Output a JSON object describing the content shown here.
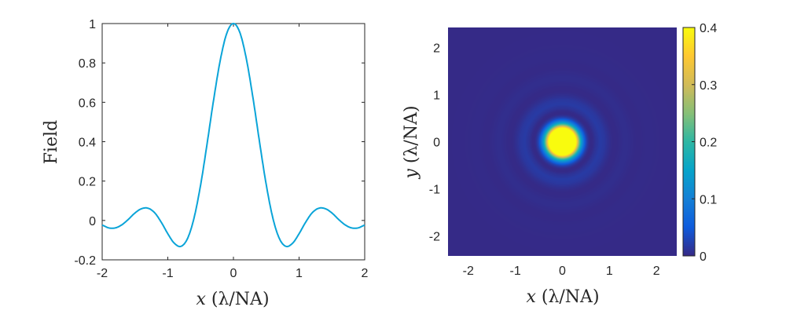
{
  "chart_data": [
    {
      "type": "line",
      "xlabel": "x (λ/NA)",
      "ylabel": "Field",
      "xlim": [
        -2,
        2
      ],
      "ylim": [
        -0.2,
        1
      ],
      "xticks": [
        "-2",
        "-1",
        "0",
        "1",
        "2"
      ],
      "yticks": [
        "-0.2",
        "0",
        "0.2",
        "0.4",
        "0.6",
        "0.8",
        "1"
      ],
      "grid": false,
      "color": "#0aa4d8",
      "x": [
        0,
        0.1,
        0.2,
        0.3,
        0.4,
        0.5,
        0.6,
        0.7,
        0.8,
        0.9,
        1.0,
        1.1,
        1.2,
        1.3,
        1.4,
        1.5,
        1.6,
        1.7,
        1.8,
        1.9,
        2.0
      ],
      "y": [
        1,
        0.952,
        0.815,
        0.617,
        0.393,
        0.181,
        0.013,
        -0.092,
        -0.1315,
        -0.116,
        -0.0675,
        -0.009,
        0.039,
        0.062,
        0.0597,
        0.0382,
        0.006,
        -0.0221,
        -0.0379,
        -0.0379,
        -0.0242
      ],
      "symmetric_about_zero": true
    },
    {
      "type": "heatmap",
      "xlabel": "x (λ/NA)",
      "ylabel": "y (λ/NA)",
      "xlim": [
        -2.43,
        2.43
      ],
      "ylim": [
        -2.43,
        2.43
      ],
      "xticks": [
        "-2",
        "-1",
        "0",
        "1",
        "2"
      ],
      "yticks": [
        "-2",
        "-1",
        "0",
        "1",
        "2"
      ],
      "colormap": "parula",
      "colorbar": {
        "range": [
          0,
          0.4
        ],
        "ticks": [
          "0",
          "0.1",
          "0.2",
          "0.3",
          "0.4"
        ],
        "placement": "right"
      },
      "radial_profile_r": [
        0,
        0.1,
        0.2,
        0.3,
        0.4,
        0.5,
        0.6,
        0.7,
        0.8,
        0.9,
        1.0,
        1.1,
        1.2,
        1.3,
        1.4,
        1.5,
        1.6,
        1.7,
        1.8,
        1.9,
        2.0
      ],
      "radial_profile_values": [
        1,
        0.906,
        0.664,
        0.381,
        0.154,
        0.0328,
        0.00017,
        0.0085,
        0.0173,
        0.0134,
        0.00456,
        8e-05,
        0.0015,
        0.00384,
        0.00356,
        0.00146,
        4e-05,
        0.00049,
        0.00144,
        0.00144,
        0.00059
      ]
    }
  ]
}
